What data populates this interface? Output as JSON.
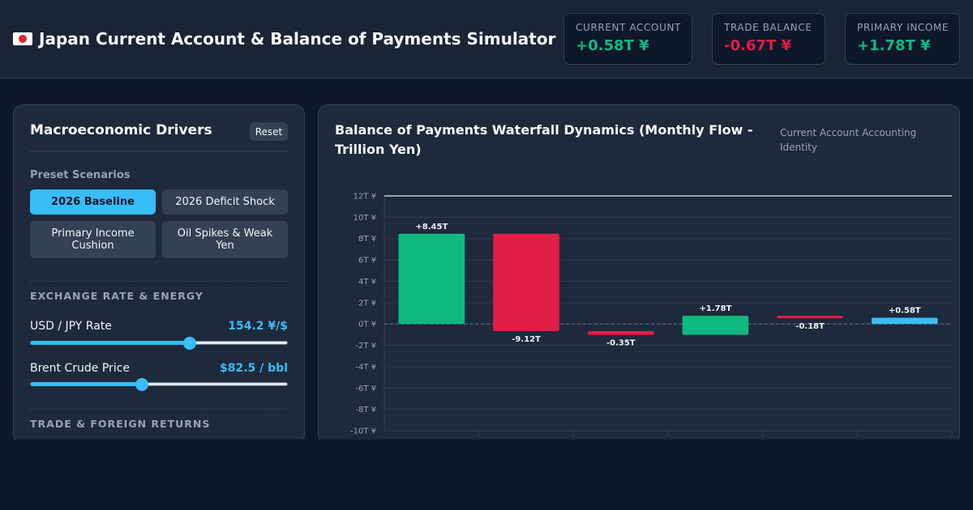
{
  "header": {
    "title": "Japan Current Account & Balance of Payments Simulator",
    "flag_icon": "japan-flag-icon",
    "kpis": [
      {
        "label": "CURRENT ACCOUNT",
        "value": "+0.58T ¥",
        "color": "#10b981"
      },
      {
        "label": "TRADE BALANCE",
        "value": "-0.67T ¥",
        "color": "#e11d48"
      },
      {
        "label": "PRIMARY INCOME",
        "value": "+1.78T ¥",
        "color": "#10b981"
      }
    ]
  },
  "controls": {
    "title": "Macroeconomic Drivers",
    "reset_label": "Reset",
    "presets_label": "Preset Scenarios",
    "presets": [
      {
        "label": "2026 Baseline",
        "active": true
      },
      {
        "label": "2026 Deficit Shock",
        "active": false
      },
      {
        "label": "Primary Income Cushion",
        "active": false
      },
      {
        "label": "Oil Spikes & Weak Yen",
        "active": false
      }
    ],
    "section_fx": "EXCHANGE RATE & ENERGY",
    "sliders": [
      {
        "label": "USD / JPY Rate",
        "value": "154.2 ¥/$",
        "fraction": 0.62
      },
      {
        "label": "Brent Crude Price",
        "value": "$82.5 / bbl",
        "fraction": 0.435
      }
    ],
    "section_trade": "TRADE & FOREIGN RETURNS"
  },
  "chart_panel": {
    "title": "Balance of Payments Waterfall Dynamics (Monthly Flow - Trillion Yen)",
    "note": "Current Account Accounting Identity"
  },
  "chart_data": {
    "type": "waterfall",
    "title": "Balance of Payments Waterfall Dynamics (Monthly Flow - Trillion Yen)",
    "unit": "T ¥",
    "ylim": [
      -10,
      12
    ],
    "y_ticks": [
      "12T ¥",
      "10T ¥",
      "8T ¥",
      "6T ¥",
      "4T ¥",
      "2T ¥",
      "0T ¥",
      "-2T ¥",
      "-4T ¥",
      "-6T ¥",
      "-8T ¥",
      "-10T ¥"
    ],
    "y_tick_values": [
      12,
      10,
      8,
      6,
      4,
      2,
      0,
      -2,
      -4,
      -6,
      -8,
      -10
    ],
    "grid": true,
    "steps": [
      {
        "start": 0,
        "end": 8.45,
        "label": "+8.45T",
        "color": "#10b981"
      },
      {
        "start": 8.45,
        "end": -0.67,
        "label": "-9.12T",
        "color": "#e11d48"
      },
      {
        "start": -0.67,
        "end": -1.02,
        "label": "-0.35T",
        "color": "#e11d48"
      },
      {
        "start": -1.02,
        "end": 0.76,
        "label": "+1.78T",
        "color": "#10b981"
      },
      {
        "start": 0.76,
        "end": 0.58,
        "label": "-0.18T",
        "color": "#e11d48"
      },
      {
        "start": 0,
        "end": 0.58,
        "label": "+0.58T",
        "color": "#38bdf8"
      }
    ],
    "reference_line": 12
  },
  "colors": {
    "accent": "#38bdf8",
    "positive": "#10b981",
    "negative": "#e11d48",
    "panel": "#1e293b",
    "background": "#0f172a"
  }
}
